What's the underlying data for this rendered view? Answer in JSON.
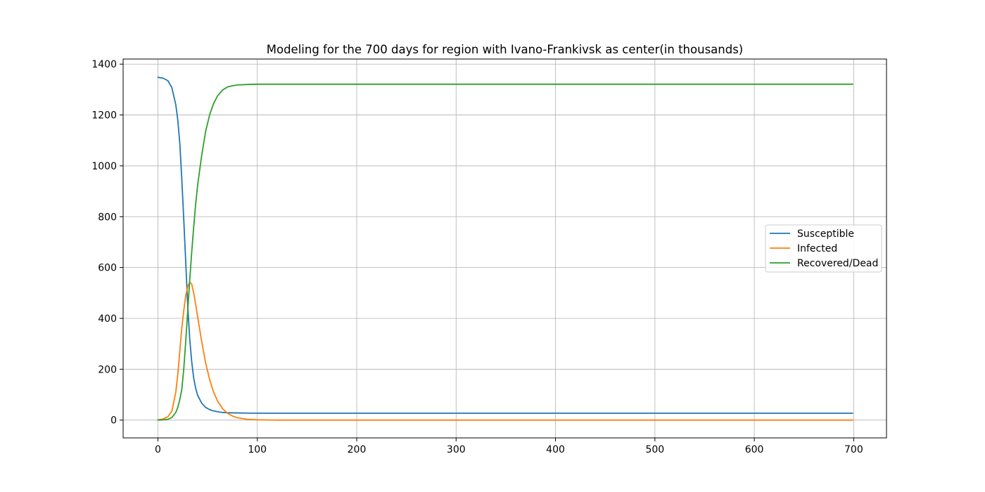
{
  "chart_data": {
    "type": "line",
    "title": "Modeling for the 700 days for region with Ivano-Frankivsk as center(in thousands)",
    "xlabel": "",
    "ylabel": "",
    "xlim": [
      -35,
      733
    ],
    "ylim": [
      -70,
      1420
    ],
    "x_ticks": [
      0,
      100,
      200,
      300,
      400,
      500,
      600,
      700
    ],
    "y_ticks": [
      0,
      200,
      400,
      600,
      800,
      1000,
      1200,
      1400
    ],
    "grid": true,
    "legend_position": "center-right",
    "series": [
      {
        "name": "Susceptible",
        "color": "#1f77b4",
        "points": [
          [
            0,
            1348
          ],
          [
            5,
            1345
          ],
          [
            10,
            1335
          ],
          [
            14,
            1308
          ],
          [
            18,
            1240
          ],
          [
            20,
            1180
          ],
          [
            22,
            1090
          ],
          [
            24,
            950
          ],
          [
            26,
            790
          ],
          [
            28,
            620
          ],
          [
            30,
            450
          ],
          [
            32,
            320
          ],
          [
            34,
            230
          ],
          [
            36,
            165
          ],
          [
            38,
            125
          ],
          [
            40,
            97
          ],
          [
            44,
            67
          ],
          [
            48,
            50
          ],
          [
            52,
            41
          ],
          [
            56,
            36
          ],
          [
            60,
            33
          ],
          [
            65,
            30
          ],
          [
            70,
            29
          ],
          [
            80,
            28
          ],
          [
            90,
            27.5
          ],
          [
            100,
            27
          ],
          [
            150,
            27
          ],
          [
            300,
            27
          ],
          [
            500,
            27
          ],
          [
            699,
            27
          ]
        ]
      },
      {
        "name": "Infected",
        "color": "#ff7f0e",
        "points": [
          [
            0,
            1
          ],
          [
            5,
            4
          ],
          [
            10,
            13
          ],
          [
            14,
            35
          ],
          [
            18,
            110
          ],
          [
            20,
            180
          ],
          [
            22,
            270
          ],
          [
            24,
            360
          ],
          [
            26,
            430
          ],
          [
            28,
            490
          ],
          [
            30,
            525
          ],
          [
            32,
            542
          ],
          [
            34,
            535
          ],
          [
            36,
            500
          ],
          [
            38,
            455
          ],
          [
            40,
            405
          ],
          [
            44,
            310
          ],
          [
            48,
            225
          ],
          [
            52,
            160
          ],
          [
            56,
            110
          ],
          [
            60,
            75
          ],
          [
            65,
            45
          ],
          [
            70,
            27
          ],
          [
            75,
            16
          ],
          [
            80,
            9
          ],
          [
            90,
            3
          ],
          [
            100,
            1
          ],
          [
            120,
            0
          ],
          [
            300,
            0
          ],
          [
            500,
            0
          ],
          [
            699,
            0
          ]
        ]
      },
      {
        "name": "Recovered/Dead",
        "color": "#2ca02c",
        "points": [
          [
            0,
            0
          ],
          [
            5,
            1
          ],
          [
            10,
            3
          ],
          [
            14,
            10
          ],
          [
            18,
            30
          ],
          [
            20,
            50
          ],
          [
            22,
            80
          ],
          [
            24,
            120
          ],
          [
            26,
            200
          ],
          [
            28,
            310
          ],
          [
            30,
            430
          ],
          [
            32,
            550
          ],
          [
            34,
            660
          ],
          [
            36,
            760
          ],
          [
            38,
            850
          ],
          [
            40,
            925
          ],
          [
            44,
            1040
          ],
          [
            48,
            1135
          ],
          [
            52,
            1200
          ],
          [
            56,
            1245
          ],
          [
            60,
            1275
          ],
          [
            65,
            1298
          ],
          [
            70,
            1310
          ],
          [
            75,
            1315
          ],
          [
            80,
            1318
          ],
          [
            90,
            1320
          ],
          [
            100,
            1321
          ],
          [
            150,
            1321
          ],
          [
            300,
            1321
          ],
          [
            500,
            1321
          ],
          [
            699,
            1321
          ]
        ]
      }
    ]
  }
}
